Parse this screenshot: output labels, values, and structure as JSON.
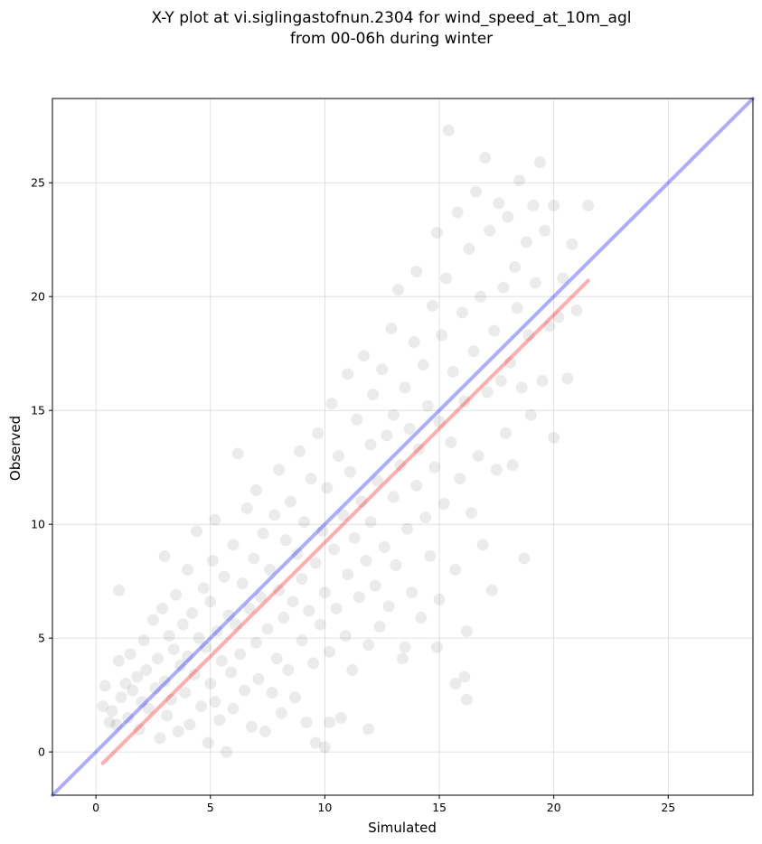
{
  "chart_data": {
    "type": "scatter",
    "title_line1": "X-Y plot at vi.siglingastofnun.2304 for wind_speed_at_10m_agl",
    "title_line2": "from 00-06h during winter",
    "xlabel": "Simulated",
    "ylabel": "Observed",
    "xlim": [
      -1.9,
      28.7
    ],
    "ylim": [
      -1.9,
      28.7
    ],
    "xticks": [
      0,
      5,
      10,
      15,
      20,
      25
    ],
    "yticks": [
      0,
      5,
      10,
      15,
      20,
      25
    ],
    "grid": true,
    "identity_line": {
      "from": [
        -1.9,
        -1.9
      ],
      "to": [
        28.7,
        28.7
      ],
      "color": "#0000ff",
      "opacity": 0.32
    },
    "fit_line": {
      "from": [
        0.3,
        -0.5
      ],
      "to": [
        21.5,
        20.7
      ],
      "color": "#ff0000",
      "opacity": 0.32
    },
    "point_color": "#000000",
    "point_opacity": 0.08,
    "points": [
      [
        0.3,
        2.0
      ],
      [
        0.4,
        2.9
      ],
      [
        0.6,
        1.3
      ],
      [
        0.7,
        1.8
      ],
      [
        0.9,
        1.2
      ],
      [
        1.0,
        4.0
      ],
      [
        1.0,
        7.1
      ],
      [
        1.1,
        2.4
      ],
      [
        1.3,
        3.0
      ],
      [
        1.4,
        1.5
      ],
      [
        1.5,
        4.3
      ],
      [
        1.6,
        2.7
      ],
      [
        1.8,
        3.3
      ],
      [
        1.9,
        1.0
      ],
      [
        2.0,
        2.2
      ],
      [
        2.1,
        4.9
      ],
      [
        2.2,
        3.6
      ],
      [
        2.3,
        1.9
      ],
      [
        2.5,
        5.8
      ],
      [
        2.6,
        2.8
      ],
      [
        2.7,
        4.1
      ],
      [
        2.8,
        0.6
      ],
      [
        2.9,
        6.3
      ],
      [
        3.0,
        3.1
      ],
      [
        3.0,
        8.6
      ],
      [
        3.1,
        1.6
      ],
      [
        3.2,
        5.1
      ],
      [
        3.3,
        2.3
      ],
      [
        3.4,
        4.5
      ],
      [
        3.5,
        6.9
      ],
      [
        3.6,
        0.9
      ],
      [
        3.7,
        3.8
      ],
      [
        3.8,
        5.6
      ],
      [
        3.9,
        2.6
      ],
      [
        4.0,
        8.0
      ],
      [
        4.0,
        4.2
      ],
      [
        4.1,
        1.2
      ],
      [
        4.2,
        6.1
      ],
      [
        4.3,
        3.4
      ],
      [
        4.4,
        9.7
      ],
      [
        4.5,
        5.0
      ],
      [
        4.6,
        2.0
      ],
      [
        4.7,
        7.2
      ],
      [
        4.8,
        4.6
      ],
      [
        4.9,
        0.4
      ],
      [
        5.0,
        3.0
      ],
      [
        5.0,
        6.6
      ],
      [
        5.1,
        8.4
      ],
      [
        5.2,
        2.2
      ],
      [
        5.2,
        10.2
      ],
      [
        5.3,
        5.3
      ],
      [
        5.4,
        1.4
      ],
      [
        5.5,
        4.0
      ],
      [
        5.6,
        7.7
      ],
      [
        5.7,
        0.0
      ],
      [
        5.8,
        6.0
      ],
      [
        5.9,
        3.5
      ],
      [
        6.0,
        9.1
      ],
      [
        6.0,
        1.9
      ],
      [
        6.1,
        5.6
      ],
      [
        6.2,
        13.1
      ],
      [
        6.3,
        4.3
      ],
      [
        6.4,
        7.4
      ],
      [
        6.5,
        2.7
      ],
      [
        6.6,
        10.7
      ],
      [
        6.7,
        6.3
      ],
      [
        6.8,
        1.1
      ],
      [
        6.9,
        8.5
      ],
      [
        7.0,
        4.8
      ],
      [
        7.0,
        11.5
      ],
      [
        7.1,
        3.2
      ],
      [
        7.2,
        6.8
      ],
      [
        7.3,
        9.6
      ],
      [
        7.4,
        0.9
      ],
      [
        7.5,
        5.4
      ],
      [
        7.6,
        8.0
      ],
      [
        7.7,
        2.6
      ],
      [
        7.8,
        10.4
      ],
      [
        7.9,
        4.1
      ],
      [
        8.0,
        7.1
      ],
      [
        8.0,
        12.4
      ],
      [
        8.1,
        1.7
      ],
      [
        8.2,
        5.9
      ],
      [
        8.3,
        9.3
      ],
      [
        8.4,
        3.6
      ],
      [
        8.5,
        11.0
      ],
      [
        8.6,
        6.6
      ],
      [
        8.7,
        2.4
      ],
      [
        8.8,
        8.7
      ],
      [
        8.9,
        13.2
      ],
      [
        9.0,
        4.9
      ],
      [
        9.0,
        7.6
      ],
      [
        9.1,
        10.1
      ],
      [
        9.2,
        1.3
      ],
      [
        9.3,
        6.2
      ],
      [
        9.4,
        12.0
      ],
      [
        9.5,
        3.9
      ],
      [
        9.6,
        8.3
      ],
      [
        9.7,
        14.0
      ],
      [
        9.8,
        5.6
      ],
      [
        9.9,
        9.7
      ],
      [
        10.0,
        0.2
      ],
      [
        10.0,
        7.0
      ],
      [
        10.1,
        11.6
      ],
      [
        10.2,
        4.4
      ],
      [
        10.3,
        15.3
      ],
      [
        10.4,
        8.9
      ],
      [
        10.5,
        6.3
      ],
      [
        10.6,
        13.0
      ],
      [
        10.7,
        1.5
      ],
      [
        10.8,
        10.4
      ],
      [
        10.9,
        5.1
      ],
      [
        11.0,
        16.6
      ],
      [
        11.0,
        7.8
      ],
      [
        11.1,
        12.3
      ],
      [
        11.2,
        3.6
      ],
      [
        11.3,
        9.4
      ],
      [
        11.4,
        14.6
      ],
      [
        11.5,
        6.8
      ],
      [
        11.6,
        11.0
      ],
      [
        11.7,
        17.4
      ],
      [
        11.8,
        8.4
      ],
      [
        11.9,
        4.7
      ],
      [
        12.0,
        13.5
      ],
      [
        12.0,
        10.1
      ],
      [
        12.1,
        15.7
      ],
      [
        12.2,
        7.3
      ],
      [
        12.3,
        11.9
      ],
      [
        12.4,
        5.5
      ],
      [
        12.5,
        16.8
      ],
      [
        12.6,
        9.0
      ],
      [
        12.7,
        13.9
      ],
      [
        12.8,
        6.4
      ],
      [
        12.9,
        18.6
      ],
      [
        13.0,
        11.2
      ],
      [
        13.0,
        14.8
      ],
      [
        13.1,
        8.2
      ],
      [
        13.2,
        20.3
      ],
      [
        13.3,
        12.6
      ],
      [
        13.4,
        4.1
      ],
      [
        13.5,
        16.0
      ],
      [
        13.6,
        9.8
      ],
      [
        13.7,
        14.2
      ],
      [
        13.8,
        7.0
      ],
      [
        13.9,
        18.0
      ],
      [
        14.0,
        11.7
      ],
      [
        14.0,
        21.1
      ],
      [
        14.1,
        13.3
      ],
      [
        14.2,
        5.9
      ],
      [
        14.3,
        17.0
      ],
      [
        14.4,
        10.3
      ],
      [
        14.5,
        15.2
      ],
      [
        14.6,
        8.6
      ],
      [
        14.7,
        19.6
      ],
      [
        14.8,
        12.5
      ],
      [
        14.9,
        22.8
      ],
      [
        15.0,
        14.5
      ],
      [
        15.0,
        6.7
      ],
      [
        15.1,
        18.3
      ],
      [
        15.2,
        10.9
      ],
      [
        15.3,
        20.8
      ],
      [
        15.4,
        27.3
      ],
      [
        15.5,
        13.6
      ],
      [
        15.6,
        16.7
      ],
      [
        15.7,
        8.0
      ],
      [
        15.8,
        23.7
      ],
      [
        15.9,
        12.0
      ],
      [
        16.0,
        19.3
      ],
      [
        16.1,
        15.4
      ],
      [
        16.2,
        2.3
      ],
      [
        16.3,
        22.1
      ],
      [
        16.4,
        10.5
      ],
      [
        16.5,
        17.6
      ],
      [
        16.6,
        24.6
      ],
      [
        16.7,
        13.0
      ],
      [
        16.8,
        20.0
      ],
      [
        16.9,
        9.1
      ],
      [
        17.0,
        26.1
      ],
      [
        17.1,
        15.8
      ],
      [
        17.2,
        22.9
      ],
      [
        17.3,
        7.1
      ],
      [
        17.4,
        18.5
      ],
      [
        17.5,
        12.4
      ],
      [
        17.6,
        24.1
      ],
      [
        17.7,
        16.3
      ],
      [
        17.8,
        20.4
      ],
      [
        17.9,
        14.0
      ],
      [
        18.0,
        23.5
      ],
      [
        18.1,
        17.1
      ],
      [
        18.2,
        12.6
      ],
      [
        18.3,
        21.3
      ],
      [
        18.4,
        19.5
      ],
      [
        18.5,
        25.1
      ],
      [
        18.6,
        16.0
      ],
      [
        18.7,
        8.5
      ],
      [
        18.8,
        22.4
      ],
      [
        18.9,
        18.3
      ],
      [
        19.0,
        14.8
      ],
      [
        19.1,
        24.0
      ],
      [
        19.2,
        20.6
      ],
      [
        19.4,
        25.9
      ],
      [
        19.5,
        16.3
      ],
      [
        19.6,
        22.9
      ],
      [
        19.8,
        18.7
      ],
      [
        20.0,
        13.8
      ],
      [
        20.0,
        24.0
      ],
      [
        20.2,
        19.1
      ],
      [
        20.4,
        20.8
      ],
      [
        20.6,
        16.4
      ],
      [
        20.8,
        22.3
      ],
      [
        21.0,
        19.4
      ],
      [
        21.5,
        24.0
      ],
      [
        16.1,
        3.3
      ],
      [
        15.7,
        3.0
      ],
      [
        16.2,
        5.3
      ],
      [
        10.2,
        1.3
      ],
      [
        9.6,
        0.4
      ],
      [
        11.9,
        1.0
      ],
      [
        14.9,
        4.6
      ],
      [
        13.5,
        4.6
      ]
    ]
  }
}
